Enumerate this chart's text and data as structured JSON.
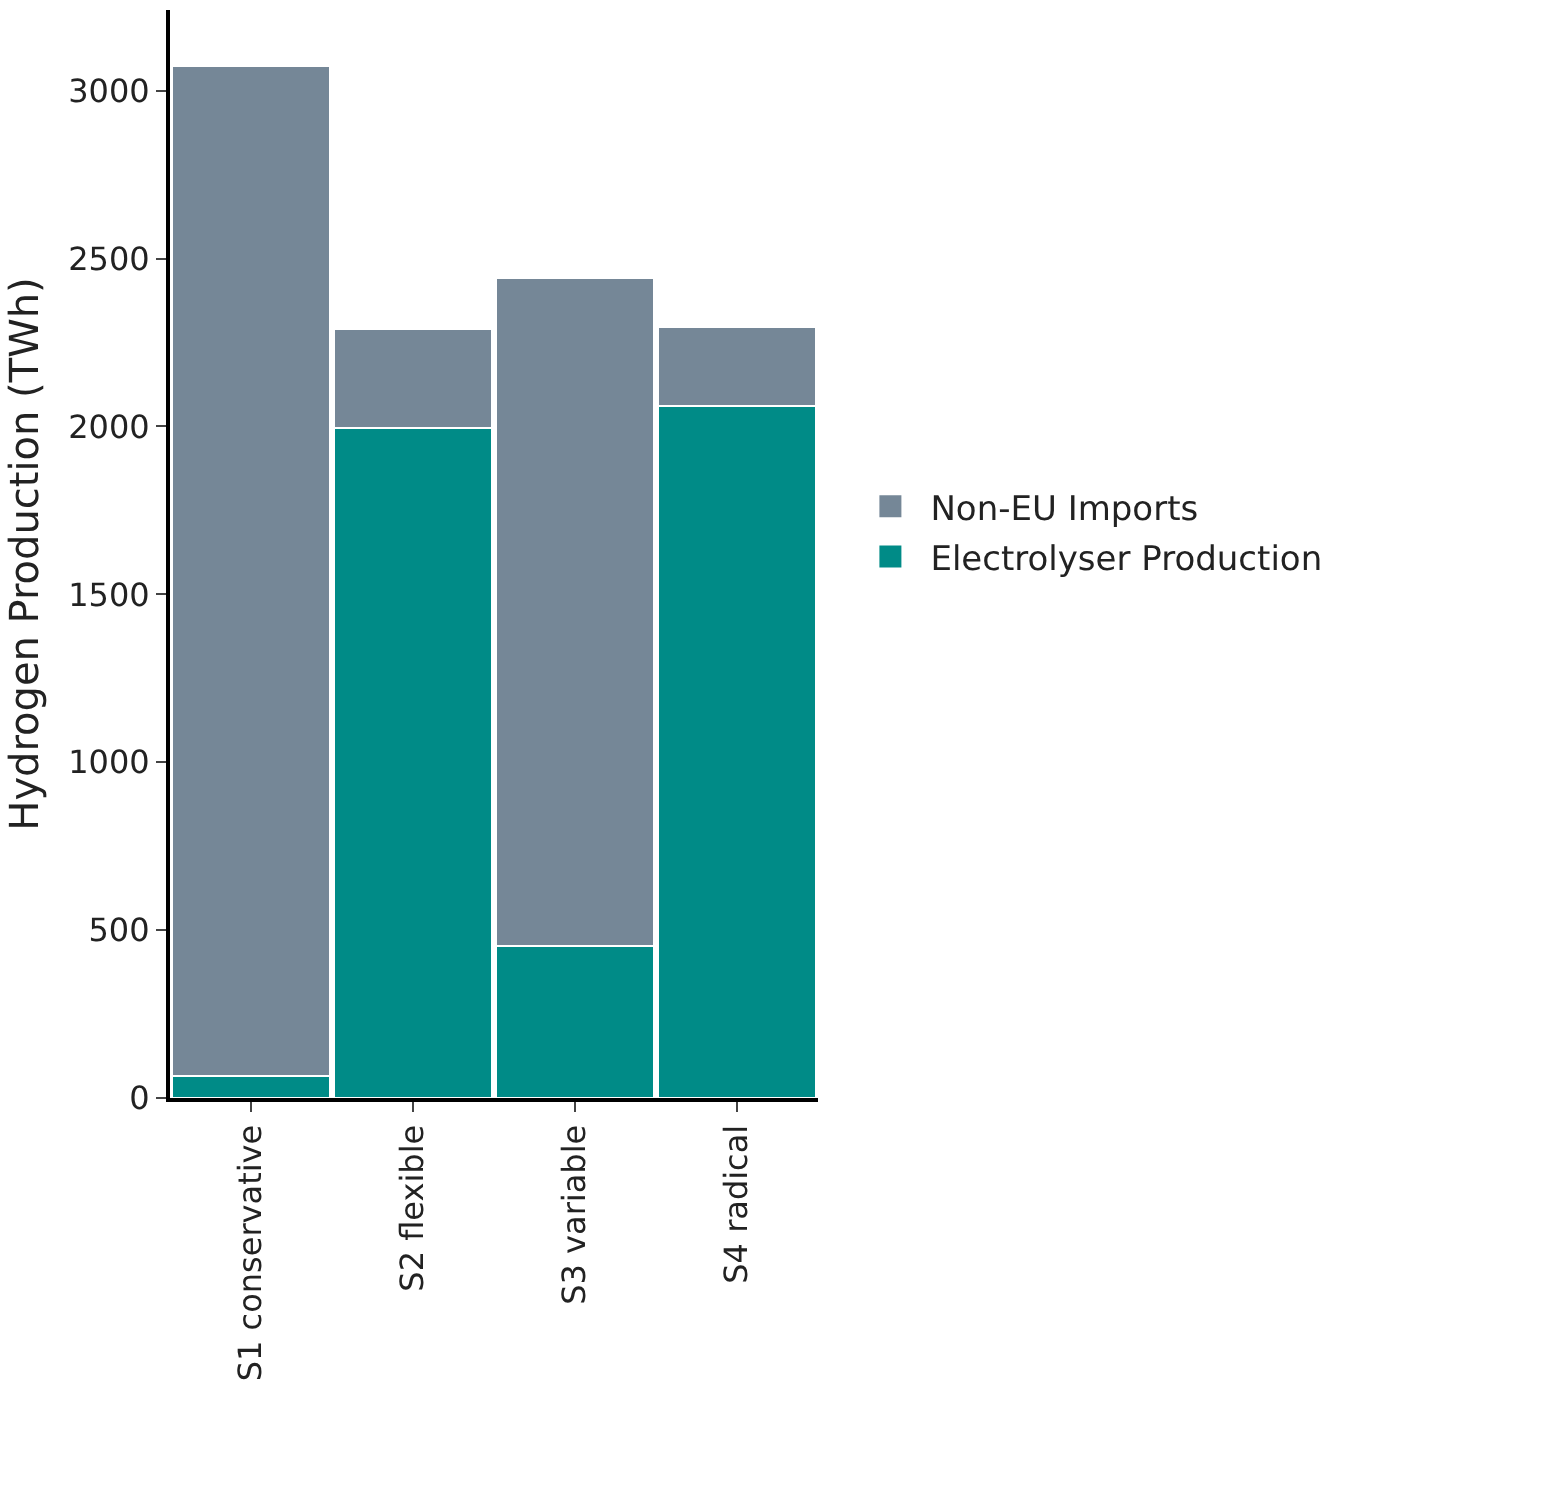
{
  "chart_data": {
    "type": "bar",
    "stacked": true,
    "ylabel": "Hydrogen Production (TWh)",
    "categories": [
      "S1 conservative",
      "S2 flexible",
      "S3 variable",
      "S4 radical"
    ],
    "series": [
      {
        "name": "Electrolyser Production",
        "color": "#008b87",
        "values": [
          67,
          1995,
          452,
          2060
        ]
      },
      {
        "name": "Non-EU Imports",
        "color": "#758797",
        "values": [
          3005,
          295,
          1990,
          235
        ]
      }
    ],
    "ylim": [
      0,
      3240
    ],
    "yticks": [
      0,
      500,
      1000,
      1500,
      2000,
      2500,
      3000
    ],
    "legend": "right"
  }
}
